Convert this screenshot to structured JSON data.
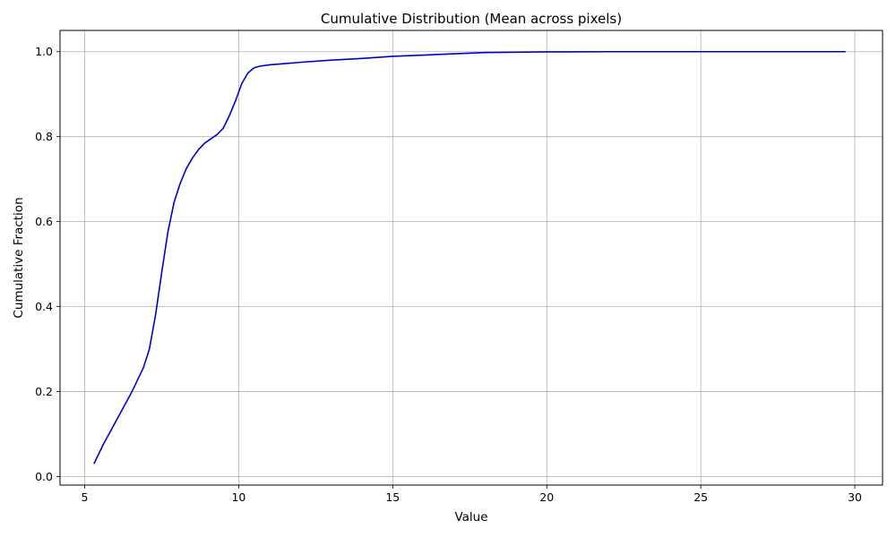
{
  "chart_data": {
    "type": "line",
    "title": "Cumulative Distribution (Mean across pixels)",
    "xlabel": "Value",
    "ylabel": "Cumulative Fraction",
    "xlim": [
      4.2,
      30.9
    ],
    "ylim": [
      -0.02,
      1.05
    ],
    "xticks": [
      5,
      10,
      15,
      20,
      25,
      30
    ],
    "yticks": [
      0.0,
      0.2,
      0.4,
      0.6,
      0.8,
      1.0
    ],
    "xtick_labels": [
      "5",
      "10",
      "15",
      "20",
      "25",
      "30"
    ],
    "ytick_labels": [
      "0.0",
      "0.2",
      "0.4",
      "0.6",
      "0.8",
      "1.0"
    ],
    "grid": true,
    "line_color": "#0000cc",
    "series": [
      {
        "x": [
          5.3,
          5.6,
          5.9,
          6.2,
          6.5,
          6.7,
          6.9,
          7.1,
          7.3,
          7.5,
          7.7,
          7.9,
          8.1,
          8.3,
          8.5,
          8.7,
          8.9,
          9.1,
          9.3,
          9.5,
          9.7,
          9.9,
          10.1,
          10.3,
          10.5,
          10.7,
          11.0,
          11.5,
          12.0,
          13.0,
          14.0,
          15.0,
          16.0,
          17.0,
          18.0,
          20.0,
          22.0,
          25.0,
          28.0,
          29.7
        ],
        "y": [
          0.03,
          0.075,
          0.115,
          0.155,
          0.195,
          0.225,
          0.255,
          0.3,
          0.38,
          0.48,
          0.575,
          0.645,
          0.69,
          0.725,
          0.75,
          0.77,
          0.785,
          0.795,
          0.805,
          0.82,
          0.85,
          0.885,
          0.925,
          0.95,
          0.962,
          0.966,
          0.969,
          0.972,
          0.975,
          0.98,
          0.984,
          0.989,
          0.992,
          0.995,
          0.998,
          0.9995,
          1.0,
          1.0,
          1.0,
          1.0
        ]
      }
    ]
  }
}
